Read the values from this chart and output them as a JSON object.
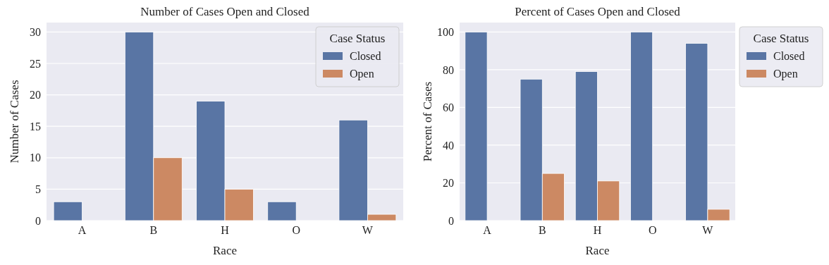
{
  "chart_data": [
    {
      "type": "bar",
      "title": "Number of Cases Open and Closed",
      "xlabel": "Race",
      "ylabel": "Number of Cases",
      "legend_title": "Case Status",
      "categories": [
        "A",
        "B",
        "H",
        "O",
        "W"
      ],
      "series": [
        {
          "name": "Closed",
          "color": "#5975a4",
          "values": [
            3,
            30,
            19,
            3,
            16
          ]
        },
        {
          "name": "Open",
          "color": "#cc8963",
          "values": [
            0,
            10,
            5,
            0,
            1
          ]
        }
      ],
      "ylim": [
        0,
        31.5
      ],
      "yticks": [
        0,
        5,
        10,
        15,
        20,
        25,
        30
      ],
      "grid": "y",
      "legend": "top right"
    },
    {
      "type": "bar",
      "title": "Percent of Cases Open and Closed",
      "xlabel": "Race",
      "ylabel": "Percent of Cases",
      "legend_title": "Case Status",
      "categories": [
        "A",
        "B",
        "H",
        "O",
        "W"
      ],
      "series": [
        {
          "name": "Closed",
          "color": "#5975a4",
          "values": [
            100,
            75,
            79,
            100,
            94
          ]
        },
        {
          "name": "Open",
          "color": "#cc8963",
          "values": [
            0,
            25,
            21,
            0,
            6
          ]
        }
      ],
      "ylim": [
        0,
        105
      ],
      "yticks": [
        0,
        20,
        40,
        60,
        80,
        100
      ],
      "grid": "y",
      "legend": "right"
    }
  ]
}
